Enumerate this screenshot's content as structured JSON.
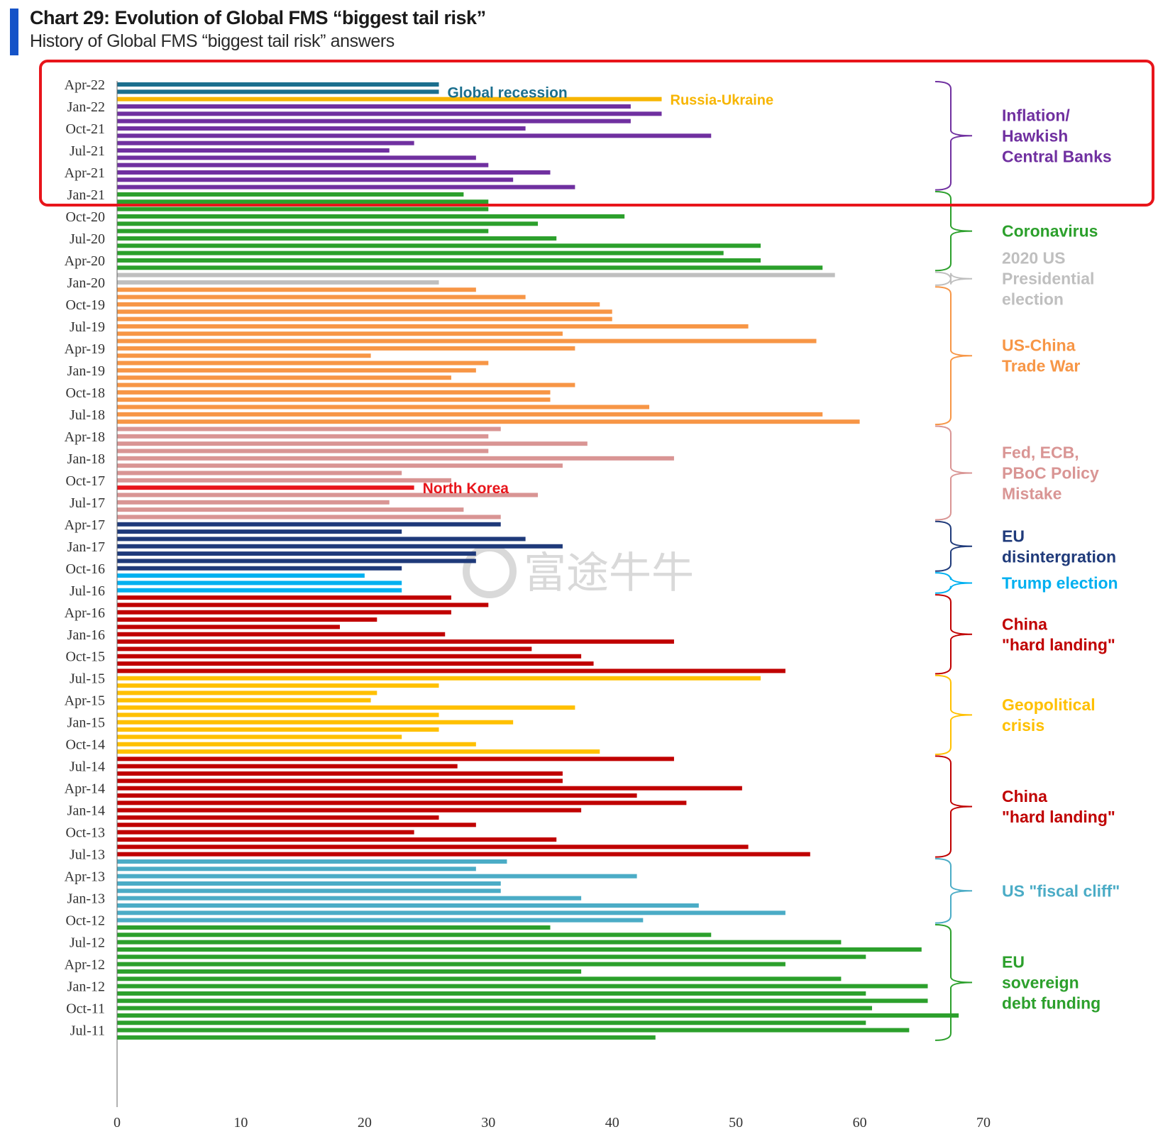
{
  "header": {
    "title": "Chart 29: Evolution of Global FMS “biggest tail risk”",
    "subtitle": "History of Global FMS “biggest tail risk” answers"
  },
  "colors": {
    "accent": "#1553c8",
    "highlight_box": "#e8151b",
    "watermark": "#d9d9d9"
  },
  "watermark": {
    "text": "富途牛牛"
  },
  "chart_data": {
    "type": "bar",
    "orientation": "horizontal",
    "title": "Chart 29: Evolution of Global FMS “biggest tail risk”",
    "subtitle": "History of Global FMS “biggest tail risk” answers",
    "xlim": [
      0,
      70
    ],
    "x_ticks": [
      "0",
      "10",
      "20",
      "30",
      "40",
      "50",
      "60",
      "70"
    ],
    "y_tick_labels": [
      "Apr-22",
      "Jan-22",
      "Oct-21",
      "Jul-21",
      "Apr-21",
      "Jan-21",
      "Oct-20",
      "Jul-20",
      "Apr-20",
      "Jan-20",
      "Oct-19",
      "Jul-19",
      "Apr-19",
      "Jan-19",
      "Oct-18",
      "Jul-18",
      "Apr-18",
      "Jan-18",
      "Oct-17",
      "Jul-17",
      "Apr-17",
      "Jan-17",
      "Oct-16",
      "Jul-16",
      "Apr-16",
      "Jan-16",
      "Oct-15",
      "Jul-15",
      "Apr-15",
      "Jan-15",
      "Oct-14",
      "Jul-14",
      "Apr-14",
      "Jan-14",
      "Oct-13",
      "Jul-13",
      "Apr-13",
      "Jan-13",
      "Oct-12",
      "Jul-12",
      "Apr-12",
      "Jan-12",
      "Oct-11",
      "Jul-11"
    ],
    "grid": false,
    "legend": "none",
    "series_colors": {
      "Global recession": "#1b6f8e",
      "Russia-Ukraine": "#f7b500",
      "Inflation/Hawkish Central Banks": "#7030a0",
      "Coronavirus": "#2ca02c",
      "2020 US Presidential election": "#bfbfbf",
      "US-China Trade War": "#f79646",
      "Fed, ECB, PBoC Policy Mistake": "#d99594",
      "North Korea": "#e8151b",
      "EU disintergration": "#1f3a7a",
      "Trump election": "#00b0f0",
      "China \"hard landing\"": "#c00000",
      "Geopolitical crisis": "#ffc000",
      "US \"fiscal cliff\"": "#4bacc6",
      "EU sovereign debt funding": "#2ca02c"
    },
    "bars": [
      {
        "value": 26,
        "series": "Global recession"
      },
      {
        "value": 26,
        "series": "Global recession"
      },
      {
        "value": 44,
        "series": "Russia-Ukraine"
      },
      {
        "value": 41.5,
        "series": "Inflation/Hawkish Central Banks"
      },
      {
        "value": 44,
        "series": "Inflation/Hawkish Central Banks"
      },
      {
        "value": 41.5,
        "series": "Inflation/Hawkish Central Banks"
      },
      {
        "value": 33,
        "series": "Inflation/Hawkish Central Banks"
      },
      {
        "value": 48,
        "series": "Inflation/Hawkish Central Banks"
      },
      {
        "value": 24,
        "series": "Inflation/Hawkish Central Banks"
      },
      {
        "value": 22,
        "series": "Inflation/Hawkish Central Banks"
      },
      {
        "value": 29,
        "series": "Inflation/Hawkish Central Banks"
      },
      {
        "value": 30,
        "series": "Inflation/Hawkish Central Banks"
      },
      {
        "value": 35,
        "series": "Inflation/Hawkish Central Banks"
      },
      {
        "value": 32,
        "series": "Inflation/Hawkish Central Banks"
      },
      {
        "value": 37,
        "series": "Inflation/Hawkish Central Banks"
      },
      {
        "value": 28,
        "series": "Coronavirus"
      },
      {
        "value": 30,
        "series": "Coronavirus"
      },
      {
        "value": 30,
        "series": "Coronavirus"
      },
      {
        "value": 41,
        "series": "Coronavirus"
      },
      {
        "value": 34,
        "series": "Coronavirus"
      },
      {
        "value": 30,
        "series": "Coronavirus"
      },
      {
        "value": 35.5,
        "series": "Coronavirus"
      },
      {
        "value": 52,
        "series": "Coronavirus"
      },
      {
        "value": 49,
        "series": "Coronavirus"
      },
      {
        "value": 52,
        "series": "Coronavirus"
      },
      {
        "value": 57,
        "series": "Coronavirus"
      },
      {
        "value": 58,
        "series": "2020 US Presidential election"
      },
      {
        "value": 26,
        "series": "2020 US Presidential election"
      },
      {
        "value": 29,
        "series": "US-China Trade War"
      },
      {
        "value": 33,
        "series": "US-China Trade War"
      },
      {
        "value": 39,
        "series": "US-China Trade War"
      },
      {
        "value": 40,
        "series": "US-China Trade War"
      },
      {
        "value": 40,
        "series": "US-China Trade War"
      },
      {
        "value": 51,
        "series": "US-China Trade War"
      },
      {
        "value": 36,
        "series": "US-China Trade War"
      },
      {
        "value": 56.5,
        "series": "US-China Trade War"
      },
      {
        "value": 37,
        "series": "US-China Trade War"
      },
      {
        "value": 20.5,
        "series": "US-China Trade War"
      },
      {
        "value": 30,
        "series": "US-China Trade War"
      },
      {
        "value": 29,
        "series": "US-China Trade War"
      },
      {
        "value": 27,
        "series": "US-China Trade War"
      },
      {
        "value": 37,
        "series": "US-China Trade War"
      },
      {
        "value": 35,
        "series": "US-China Trade War"
      },
      {
        "value": 35,
        "series": "US-China Trade War"
      },
      {
        "value": 43,
        "series": "US-China Trade War"
      },
      {
        "value": 57,
        "series": "US-China Trade War"
      },
      {
        "value": 60,
        "series": "US-China Trade War"
      },
      {
        "value": 31,
        "series": "Fed, ECB, PBoC Policy Mistake"
      },
      {
        "value": 30,
        "series": "Fed, ECB, PBoC Policy Mistake"
      },
      {
        "value": 38,
        "series": "Fed, ECB, PBoC Policy Mistake"
      },
      {
        "value": 30,
        "series": "Fed, ECB, PBoC Policy Mistake"
      },
      {
        "value": 45,
        "series": "Fed, ECB, PBoC Policy Mistake"
      },
      {
        "value": 36,
        "series": "Fed, ECB, PBoC Policy Mistake"
      },
      {
        "value": 23,
        "series": "Fed, ECB, PBoC Policy Mistake"
      },
      {
        "value": 27,
        "series": "Fed, ECB, PBoC Policy Mistake"
      },
      {
        "value": 24,
        "series": "North Korea"
      },
      {
        "value": 34,
        "series": "Fed, ECB, PBoC Policy Mistake"
      },
      {
        "value": 22,
        "series": "Fed, ECB, PBoC Policy Mistake"
      },
      {
        "value": 28,
        "series": "Fed, ECB, PBoC Policy Mistake"
      },
      {
        "value": 31,
        "series": "Fed, ECB, PBoC Policy Mistake"
      },
      {
        "value": 31,
        "series": "EU disintergration"
      },
      {
        "value": 23,
        "series": "EU disintergration"
      },
      {
        "value": 33,
        "series": "EU disintergration"
      },
      {
        "value": 36,
        "series": "EU disintergration"
      },
      {
        "value": 29,
        "series": "EU disintergration"
      },
      {
        "value": 29,
        "series": "EU disintergration"
      },
      {
        "value": 23,
        "series": "EU disintergration"
      },
      {
        "value": 20,
        "series": "Trump election"
      },
      {
        "value": 23,
        "series": "Trump election"
      },
      {
        "value": 23,
        "series": "Trump election"
      },
      {
        "value": 27,
        "series": "China \"hard landing\""
      },
      {
        "value": 30,
        "series": "China \"hard landing\""
      },
      {
        "value": 27,
        "series": "China \"hard landing\""
      },
      {
        "value": 21,
        "series": "China \"hard landing\""
      },
      {
        "value": 18,
        "series": "China \"hard landing\""
      },
      {
        "value": 26.5,
        "series": "China \"hard landing\""
      },
      {
        "value": 45,
        "series": "China \"hard landing\""
      },
      {
        "value": 33.5,
        "series": "China \"hard landing\""
      },
      {
        "value": 37.5,
        "series": "China \"hard landing\""
      },
      {
        "value": 38.5,
        "series": "China \"hard landing\""
      },
      {
        "value": 54,
        "series": "China \"hard landing\""
      },
      {
        "value": 52,
        "series": "Geopolitical crisis"
      },
      {
        "value": 26,
        "series": "Geopolitical crisis"
      },
      {
        "value": 21,
        "series": "Geopolitical crisis"
      },
      {
        "value": 20.5,
        "series": "Geopolitical crisis"
      },
      {
        "value": 37,
        "series": "Geopolitical crisis"
      },
      {
        "value": 26,
        "series": "Geopolitical crisis"
      },
      {
        "value": 32,
        "series": "Geopolitical crisis"
      },
      {
        "value": 26,
        "series": "Geopolitical crisis"
      },
      {
        "value": 23,
        "series": "Geopolitical crisis"
      },
      {
        "value": 29,
        "series": "Geopolitical crisis"
      },
      {
        "value": 39,
        "series": "Geopolitical crisis"
      },
      {
        "value": 45,
        "series": "China \"hard landing\""
      },
      {
        "value": 27.5,
        "series": "China \"hard landing\""
      },
      {
        "value": 36,
        "series": "China \"hard landing\""
      },
      {
        "value": 36,
        "series": "China \"hard landing\""
      },
      {
        "value": 50.5,
        "series": "China \"hard landing\""
      },
      {
        "value": 42,
        "series": "China \"hard landing\""
      },
      {
        "value": 46,
        "series": "China \"hard landing\""
      },
      {
        "value": 37.5,
        "series": "China \"hard landing\""
      },
      {
        "value": 26,
        "series": "China \"hard landing\""
      },
      {
        "value": 29,
        "series": "China \"hard landing\""
      },
      {
        "value": 24,
        "series": "China \"hard landing\""
      },
      {
        "value": 35.5,
        "series": "China \"hard landing\""
      },
      {
        "value": 51,
        "series": "China \"hard landing\""
      },
      {
        "value": 56,
        "series": "China \"hard landing\""
      },
      {
        "value": 31.5,
        "series": "US \"fiscal cliff\""
      },
      {
        "value": 29,
        "series": "US \"fiscal cliff\""
      },
      {
        "value": 42,
        "series": "US \"fiscal cliff\""
      },
      {
        "value": 31,
        "series": "US \"fiscal cliff\""
      },
      {
        "value": 31,
        "series": "US \"fiscal cliff\""
      },
      {
        "value": 37.5,
        "series": "US \"fiscal cliff\""
      },
      {
        "value": 47,
        "series": "US \"fiscal cliff\""
      },
      {
        "value": 54,
        "series": "US \"fiscal cliff\""
      },
      {
        "value": 42.5,
        "series": "US \"fiscal cliff\""
      },
      {
        "value": 35,
        "series": "EU sovereign debt funding"
      },
      {
        "value": 48,
        "series": "EU sovereign debt funding"
      },
      {
        "value": 58.5,
        "series": "EU sovereign debt funding"
      },
      {
        "value": 65,
        "series": "EU sovereign debt funding"
      },
      {
        "value": 60.5,
        "series": "EU sovereign debt funding"
      },
      {
        "value": 54,
        "series": "EU sovereign debt funding"
      },
      {
        "value": 37.5,
        "series": "EU sovereign debt funding"
      },
      {
        "value": 58.5,
        "series": "EU sovereign debt funding"
      },
      {
        "value": 65.5,
        "series": "EU sovereign debt funding"
      },
      {
        "value": 60.5,
        "series": "EU sovereign debt funding"
      },
      {
        "value": 65.5,
        "series": "EU sovereign debt funding"
      },
      {
        "value": 61,
        "series": "EU sovereign debt funding"
      },
      {
        "value": 68,
        "series": "EU sovereign debt funding"
      },
      {
        "value": 60.5,
        "series": "EU sovereign debt funding"
      },
      {
        "value": 64,
        "series": "EU sovereign debt funding"
      },
      {
        "value": 43.5,
        "series": "EU sovereign debt funding"
      }
    ],
    "inline_labels": [
      {
        "text": "Global recession",
        "series": "Global recession"
      },
      {
        "text": "Russia-Ukraine",
        "series": "Russia-Ukraine"
      },
      {
        "text": "North Korea",
        "series": "North Korea"
      }
    ],
    "group_labels": [
      {
        "lines": [
          "Inflation/",
          "Hawkish",
          "Central Banks"
        ],
        "series": "Inflation/Hawkish Central Banks"
      },
      {
        "lines": [
          "Coronavirus"
        ],
        "series": "Coronavirus"
      },
      {
        "lines": [
          "2020 US",
          "Presidential",
          "election"
        ],
        "series": "2020 US Presidential election"
      },
      {
        "lines": [
          "US-China",
          "Trade War"
        ],
        "series": "US-China Trade War"
      },
      {
        "lines": [
          "Fed, ECB,",
          "PBoC Policy",
          "Mistake"
        ],
        "series": "Fed, ECB, PBoC Policy Mistake"
      },
      {
        "lines": [
          "EU",
          "disintergration"
        ],
        "series": "EU disintergration"
      },
      {
        "lines": [
          "Trump election"
        ],
        "series": "Trump election"
      },
      {
        "lines": [
          "China",
          "\"hard landing\""
        ],
        "series": "China \"hard landing\""
      },
      {
        "lines": [
          "Geopolitical",
          "crisis"
        ],
        "series": "Geopolitical crisis"
      },
      {
        "lines": [
          "China",
          "\"hard landing\""
        ],
        "series": "China \"hard landing\""
      },
      {
        "lines": [
          "US \"fiscal cliff\""
        ],
        "series": "US \"fiscal cliff\""
      },
      {
        "lines": [
          "EU",
          "sovereign",
          "debt funding"
        ],
        "series": "EU sovereign debt funding"
      }
    ]
  }
}
